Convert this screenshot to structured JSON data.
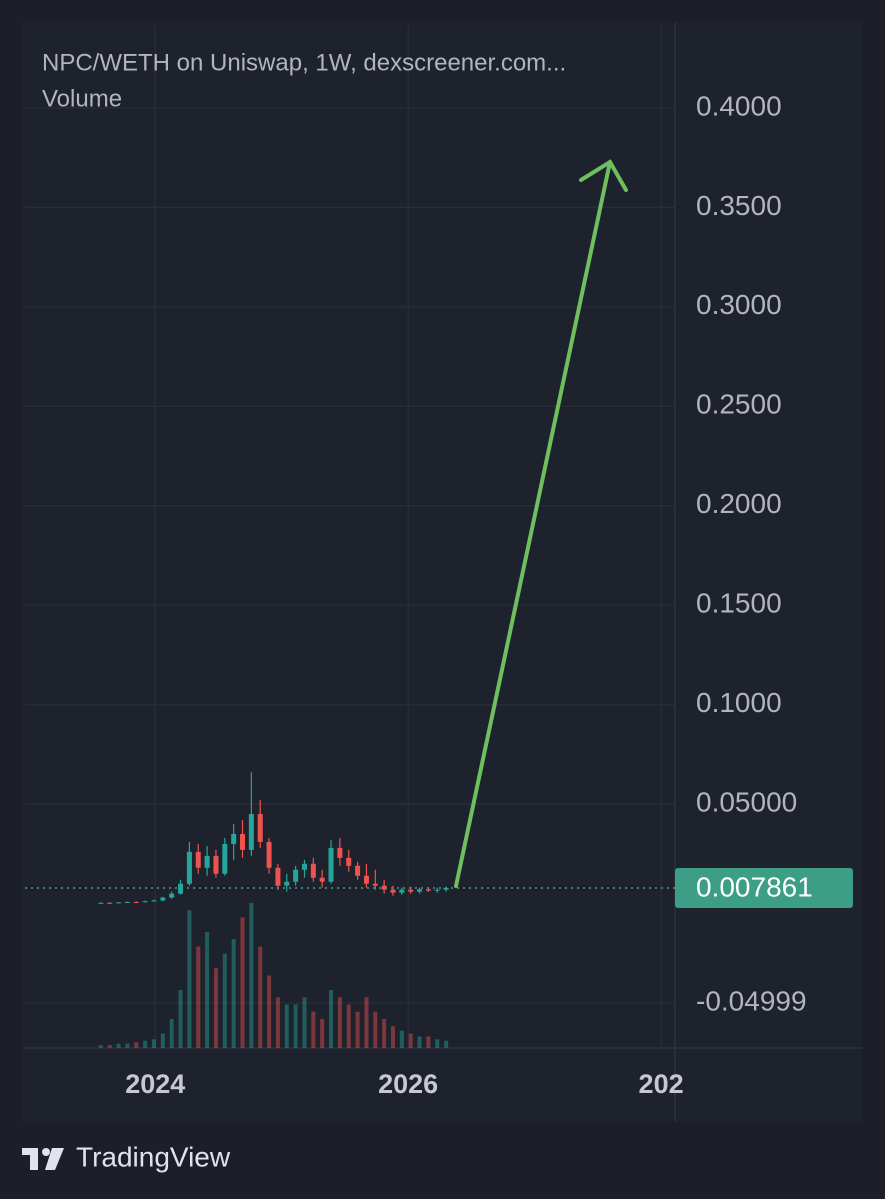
{
  "chart_data": {
    "type": "candlestick",
    "title": "NPC/WETH on Uniswap, 1W, dexscreener.com...",
    "subtitle": "Volume",
    "x": [
      2023.57,
      2023.64,
      2023.71,
      2023.78,
      2023.85,
      2023.92,
      2023.99,
      2024.06,
      2024.13,
      2024.2,
      2024.27,
      2024.34,
      2024.41,
      2024.48,
      2024.55,
      2024.62,
      2024.69,
      2024.76,
      2024.83,
      2024.9,
      2024.97,
      2025.04,
      2025.11,
      2025.18,
      2025.25,
      2025.32,
      2025.39,
      2025.46,
      2025.53,
      2025.6,
      2025.67,
      2025.74,
      2025.81,
      2025.88,
      2025.95,
      2026.02,
      2026.09,
      2026.16,
      2026.23,
      2026.3
    ],
    "open": [
      0.0003,
      0.0004,
      0.0003,
      0.0006,
      0.0008,
      0.0007,
      0.0012,
      0.0016,
      0.003,
      0.005,
      0.01,
      0.026,
      0.018,
      0.024,
      0.015,
      0.03,
      0.035,
      0.027,
      0.045,
      0.031,
      0.018,
      0.009,
      0.011,
      0.017,
      0.02,
      0.013,
      0.011,
      0.028,
      0.023,
      0.019,
      0.014,
      0.01,
      0.009,
      0.007,
      0.0055,
      0.007,
      0.006,
      0.0072,
      0.0065,
      0.007
    ],
    "high": [
      0.0006,
      0.0007,
      0.0008,
      0.001,
      0.0012,
      0.0015,
      0.002,
      0.0035,
      0.006,
      0.012,
      0.031,
      0.03,
      0.029,
      0.027,
      0.033,
      0.04,
      0.042,
      0.066,
      0.052,
      0.033,
      0.02,
      0.015,
      0.019,
      0.022,
      0.023,
      0.017,
      0.032,
      0.033,
      0.027,
      0.021,
      0.02,
      0.017,
      0.012,
      0.009,
      0.008,
      0.0085,
      0.008,
      0.0082,
      0.008,
      0.0085
    ],
    "low": [
      0.0001,
      0.0002,
      0.0002,
      0.0004,
      0.0005,
      0.0006,
      0.001,
      0.0012,
      0.0025,
      0.0045,
      0.009,
      0.015,
      0.014,
      0.013,
      0.014,
      0.022,
      0.023,
      0.024,
      0.028,
      0.015,
      0.007,
      0.006,
      0.009,
      0.013,
      0.011,
      0.008,
      0.01,
      0.019,
      0.016,
      0.012,
      0.008,
      0.007,
      0.005,
      0.004,
      0.0045,
      0.005,
      0.005,
      0.0058,
      0.0055,
      0.006
    ],
    "close": [
      0.0004,
      0.0003,
      0.0006,
      0.0008,
      0.0007,
      0.0012,
      0.0016,
      0.003,
      0.005,
      0.01,
      0.026,
      0.018,
      0.024,
      0.015,
      0.03,
      0.035,
      0.027,
      0.045,
      0.031,
      0.018,
      0.009,
      0.011,
      0.017,
      0.02,
      0.013,
      0.011,
      0.028,
      0.023,
      0.019,
      0.014,
      0.01,
      0.009,
      0.007,
      0.0055,
      0.007,
      0.006,
      0.0072,
      0.0065,
      0.007,
      0.007861
    ],
    "volume": [
      2,
      2,
      3,
      3,
      4,
      5,
      6,
      10,
      20,
      40,
      95,
      70,
      80,
      55,
      65,
      75,
      90,
      100,
      70,
      50,
      35,
      30,
      30,
      35,
      25,
      20,
      40,
      35,
      30,
      25,
      35,
      25,
      20,
      15,
      12,
      10,
      8,
      8,
      6,
      5
    ],
    "up_color": "#26a69a",
    "down_color": "#ef5350",
    "last_price": 0.007861,
    "last_price_color": "#3d9e86",
    "xlim": [
      2022.97,
      2028.11
    ],
    "xticks": [
      2024,
      2026,
      {
        "value": 2028,
        "label": "202"
      }
    ],
    "ylim": [
      -0.0726,
      0.4417
    ],
    "yticks": [
      {
        "value": 0.4,
        "label": "0.4000"
      },
      {
        "value": 0.35,
        "label": "0.3500"
      },
      {
        "value": 0.3,
        "label": "0.3000"
      },
      {
        "value": 0.25,
        "label": "0.2500"
      },
      {
        "value": 0.2,
        "label": "0.2000"
      },
      {
        "value": 0.15,
        "label": "0.1500"
      },
      {
        "value": 0.1,
        "label": "0.1000"
      },
      {
        "value": 0.05,
        "label": "0.05000"
      },
      -0.04999
    ],
    "grid": true
  },
  "branding": "TradingView"
}
